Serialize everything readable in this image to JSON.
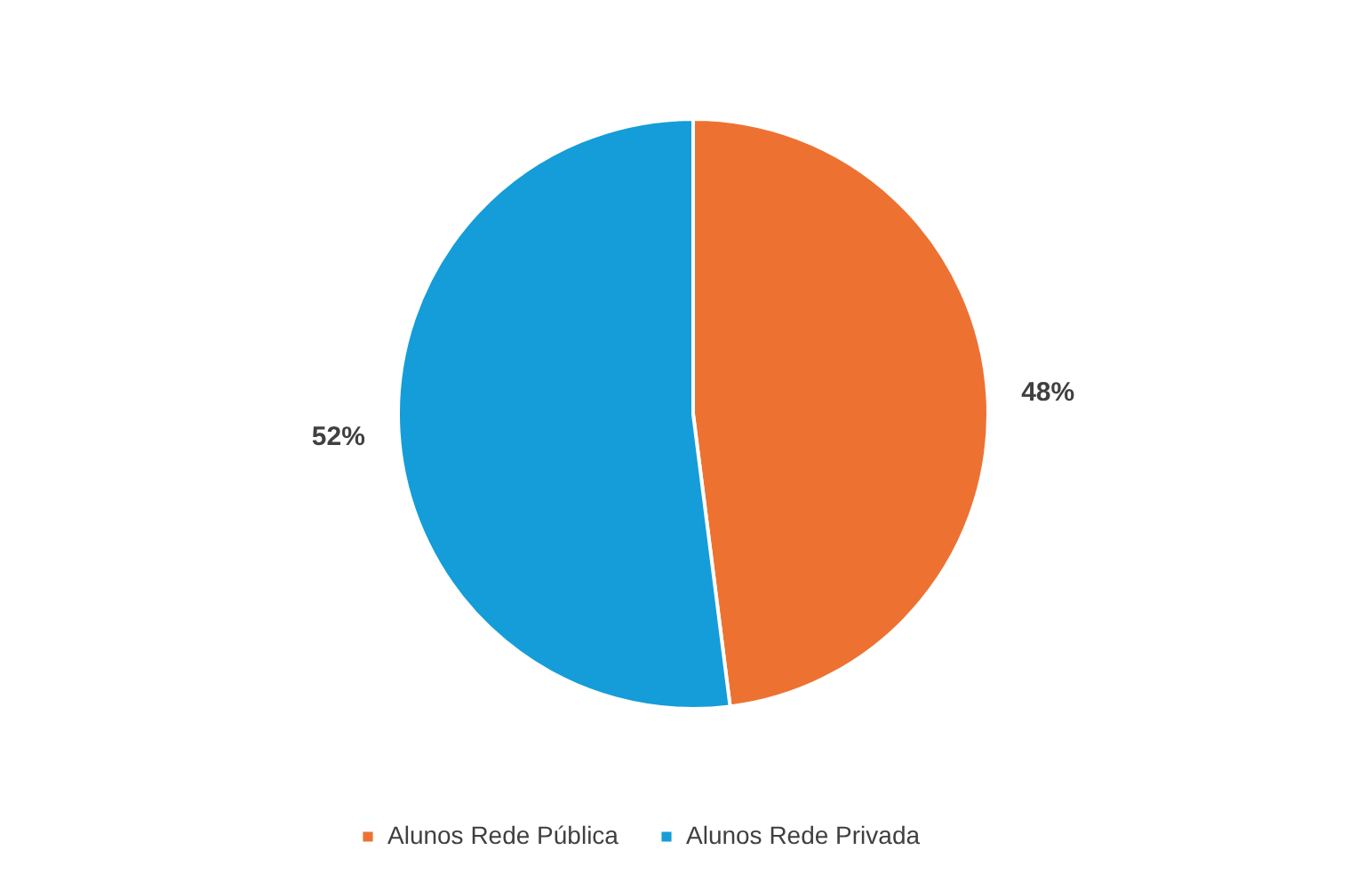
{
  "chart_data": {
    "type": "pie",
    "categories": [
      "Alunos Rede Pública",
      "Alunos Rede Privada"
    ],
    "values": [
      48,
      52
    ],
    "colors": [
      "#ed7232",
      "#149dd8"
    ],
    "value_labels": [
      "48%",
      "52%"
    ],
    "legend": "bottom"
  }
}
